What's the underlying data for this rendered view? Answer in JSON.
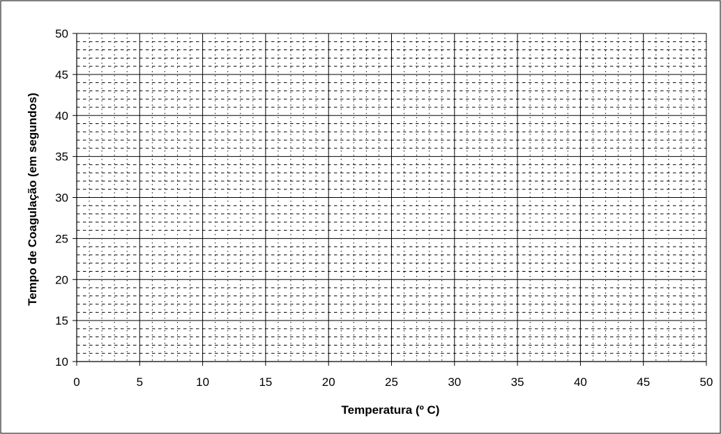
{
  "chart_data": {
    "type": "scatter",
    "title": "",
    "xlabel": "Temperatura (º C)",
    "ylabel": "Tempo de Coagulação (em segundos)",
    "xlim": [
      0,
      50
    ],
    "ylim": [
      10,
      50
    ],
    "x_major_step": 5,
    "y_major_step": 5,
    "x_minor_step": 1,
    "y_minor_step": 1,
    "x_ticks": [
      "0",
      "5",
      "10",
      "15",
      "20",
      "25",
      "30",
      "35",
      "40",
      "45",
      "50"
    ],
    "y_ticks": [
      "10",
      "15",
      "20",
      "25",
      "30",
      "35",
      "40",
      "45",
      "50"
    ],
    "grid": "major solid, minor dotted",
    "legend": "none",
    "series": [],
    "colors": {
      "major_grid": "#000000",
      "minor_grid": "#000000",
      "plot_background": "#ffffff",
      "frame": "#000000"
    }
  }
}
